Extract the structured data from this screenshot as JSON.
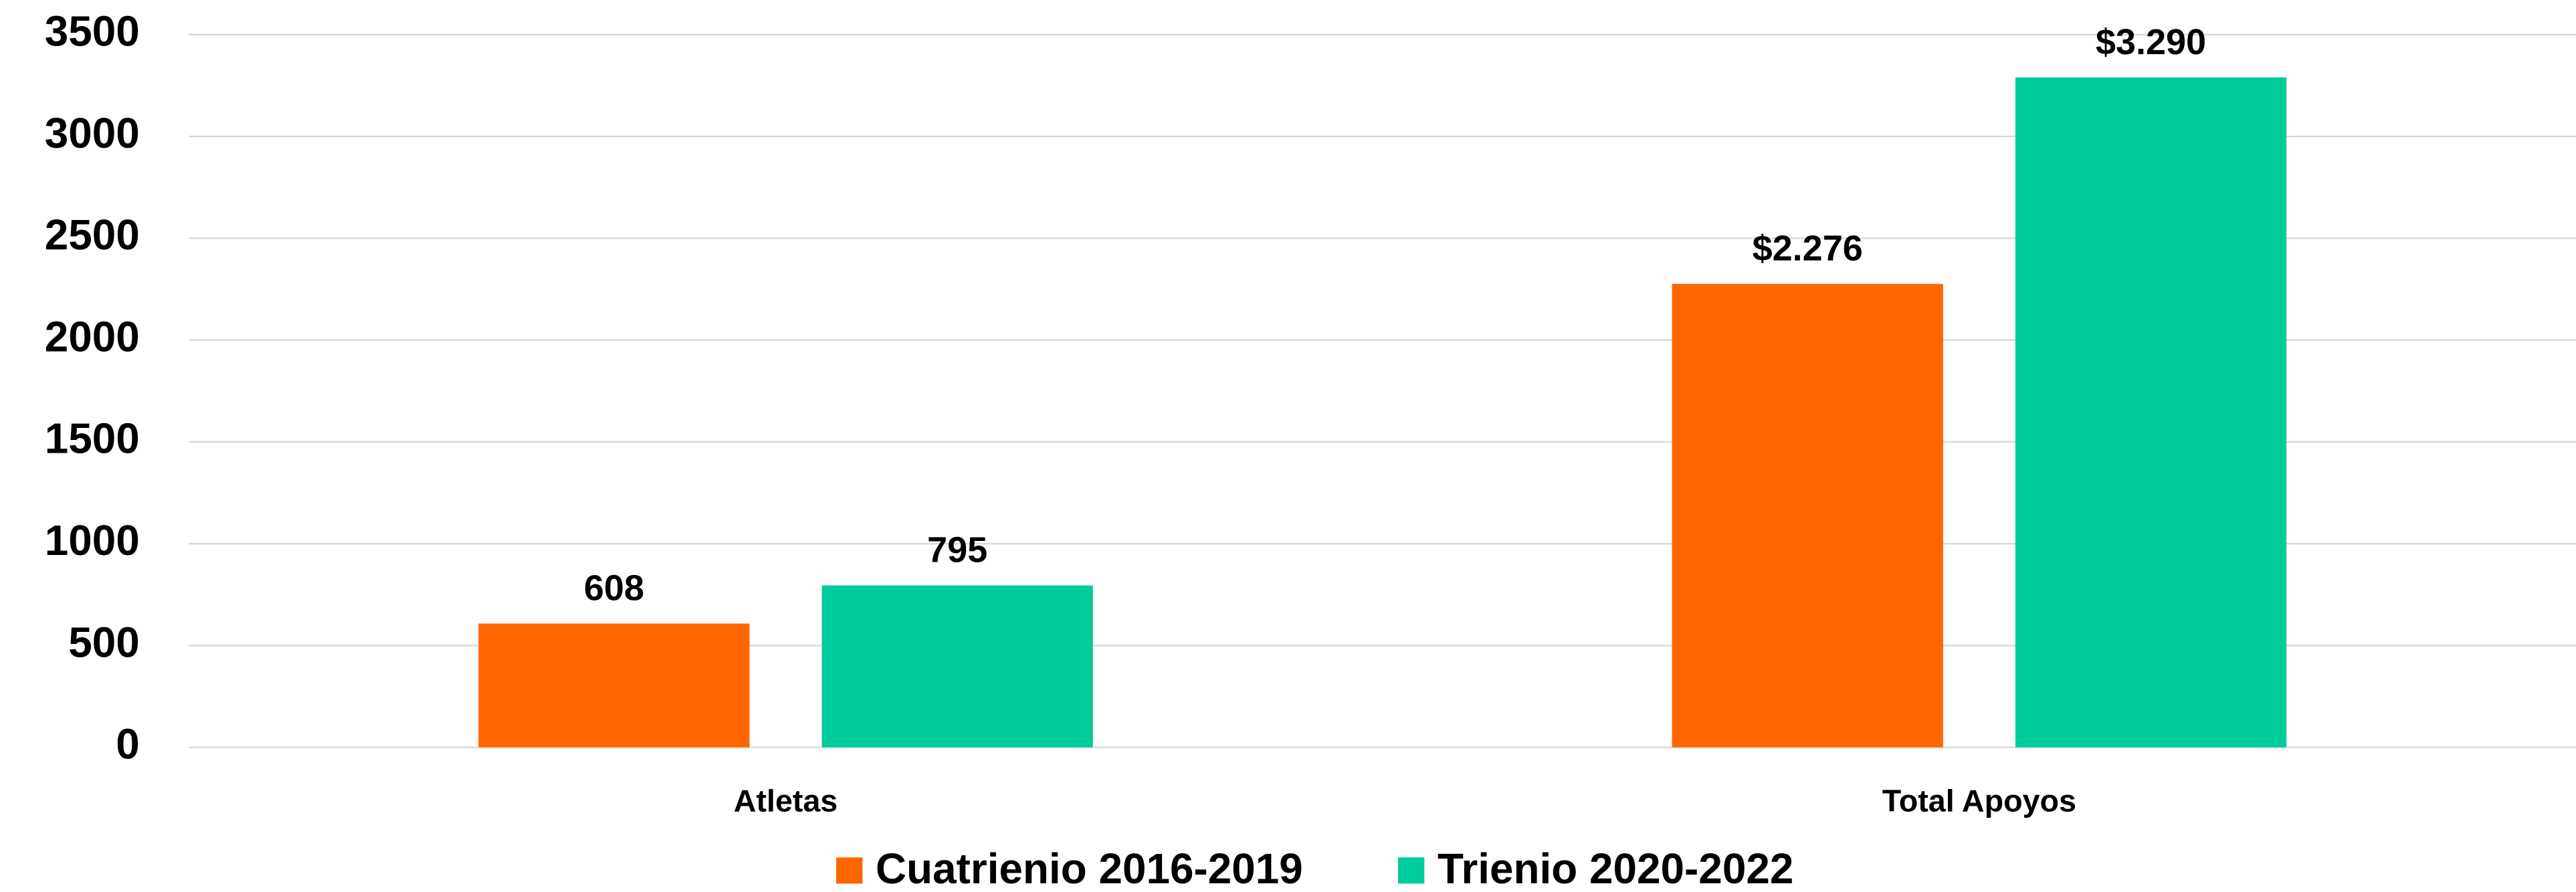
{
  "chart_data": {
    "type": "bar",
    "categories": [
      "Atletas",
      "Total Apoyos"
    ],
    "series": [
      {
        "name": "Cuatrienio 2016-2019",
        "color": "#ff6600",
        "values": [
          608,
          2276
        ],
        "value_labels": [
          "608",
          "$2.276"
        ]
      },
      {
        "name": "Trienio 2020-2022",
        "color": "#00cc99",
        "values": [
          795,
          3290
        ],
        "value_labels": [
          "795",
          "$3.290"
        ]
      }
    ],
    "ylim": [
      0,
      3500
    ],
    "yticks": [
      0,
      500,
      1000,
      1500,
      2000,
      2500,
      3000,
      3500
    ],
    "grid": true,
    "legend": "bottom"
  }
}
